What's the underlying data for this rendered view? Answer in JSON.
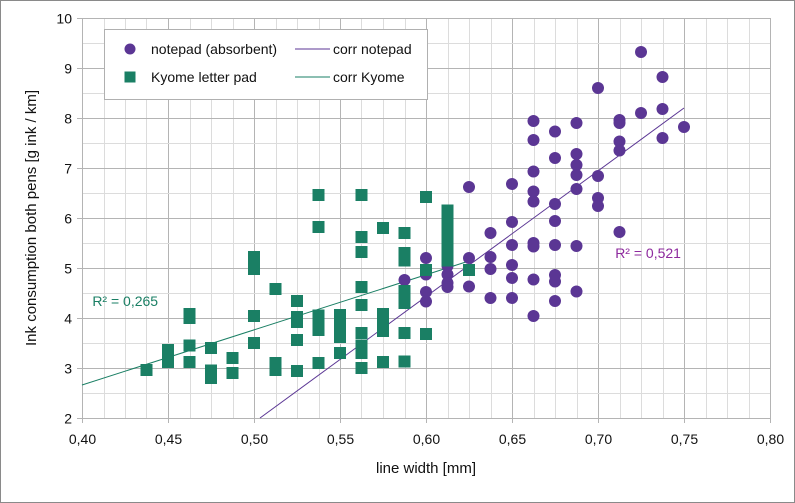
{
  "chart_data": {
    "type": "scatter",
    "title": "",
    "xlabel": "line width [mm]",
    "ylabel": "Ink consumption both pens [g ink / km]",
    "xlim": [
      0.4,
      0.8
    ],
    "ylim": [
      2,
      10
    ],
    "x_ticks": [
      "0,40",
      "0,45",
      "0,50",
      "0,55",
      "0,60",
      "0,65",
      "0,70",
      "0,75",
      "0,80"
    ],
    "x_tick_values": [
      0.4,
      0.45,
      0.5,
      0.55,
      0.6,
      0.65,
      0.7,
      0.75,
      0.8
    ],
    "y_ticks": [
      "2",
      "3",
      "4",
      "5",
      "6",
      "7",
      "8",
      "9",
      "10"
    ],
    "y_tick_values": [
      2,
      3,
      4,
      5,
      6,
      7,
      8,
      9,
      10
    ],
    "grid": true,
    "legend_position": "top-left",
    "series": [
      {
        "name": "notepad (absorbent)",
        "marker": "circle",
        "color": "#5b3694",
        "points": [
          [
            0.5875,
            4.76
          ],
          [
            0.6,
            5.2
          ],
          [
            0.6,
            4.87
          ],
          [
            0.6,
            4.52
          ],
          [
            0.6,
            4.33
          ],
          [
            0.6125,
            5.28
          ],
          [
            0.6125,
            5.04
          ],
          [
            0.6125,
            4.87
          ],
          [
            0.6125,
            4.7
          ],
          [
            0.6125,
            4.62
          ],
          [
            0.625,
            6.62
          ],
          [
            0.625,
            5.2
          ],
          [
            0.625,
            4.63
          ],
          [
            0.6375,
            5.7
          ],
          [
            0.6375,
            5.22
          ],
          [
            0.6375,
            4.98
          ],
          [
            0.6375,
            4.4
          ],
          [
            0.65,
            6.68
          ],
          [
            0.65,
            5.92
          ],
          [
            0.65,
            5.46
          ],
          [
            0.65,
            5.06
          ],
          [
            0.65,
            4.8
          ],
          [
            0.65,
            4.4
          ],
          [
            0.6625,
            7.94
          ],
          [
            0.6625,
            7.56
          ],
          [
            0.6625,
            6.93
          ],
          [
            0.6625,
            6.53
          ],
          [
            0.6625,
            6.33
          ],
          [
            0.6625,
            5.5
          ],
          [
            0.6625,
            5.43
          ],
          [
            0.6625,
            4.77
          ],
          [
            0.6625,
            4.04
          ],
          [
            0.675,
            7.73
          ],
          [
            0.675,
            7.2
          ],
          [
            0.675,
            6.28
          ],
          [
            0.675,
            5.94
          ],
          [
            0.675,
            5.46
          ],
          [
            0.675,
            4.86
          ],
          [
            0.675,
            4.73
          ],
          [
            0.675,
            4.34
          ],
          [
            0.6875,
            7.9
          ],
          [
            0.6875,
            7.28
          ],
          [
            0.6875,
            7.06
          ],
          [
            0.6875,
            6.86
          ],
          [
            0.6875,
            6.58
          ],
          [
            0.6875,
            5.44
          ],
          [
            0.6875,
            4.53
          ],
          [
            0.7,
            8.6
          ],
          [
            0.7,
            6.84
          ],
          [
            0.7,
            6.4
          ],
          [
            0.7,
            6.24
          ],
          [
            0.7125,
            7.96
          ],
          [
            0.7125,
            7.9
          ],
          [
            0.7125,
            7.53
          ],
          [
            0.7125,
            7.35
          ],
          [
            0.7125,
            5.72
          ],
          [
            0.725,
            9.32
          ],
          [
            0.725,
            8.1
          ],
          [
            0.7375,
            8.82
          ],
          [
            0.7375,
            8.18
          ],
          [
            0.7375,
            7.6
          ],
          [
            0.75,
            7.82
          ]
        ]
      },
      {
        "name": "Kyome letter pad",
        "marker": "square",
        "color": "#1a7f64",
        "points": [
          [
            0.4375,
            2.96
          ],
          [
            0.45,
            3.36
          ],
          [
            0.45,
            3.12
          ],
          [
            0.4625,
            4.08
          ],
          [
            0.4625,
            4.0
          ],
          [
            0.4625,
            3.45
          ],
          [
            0.4625,
            3.12
          ],
          [
            0.475,
            3.4
          ],
          [
            0.475,
            2.95
          ],
          [
            0.475,
            2.8
          ],
          [
            0.4875,
            3.2
          ],
          [
            0.4875,
            2.9
          ],
          [
            0.5,
            5.22
          ],
          [
            0.5,
            4.98
          ],
          [
            0.5,
            4.04
          ],
          [
            0.5,
            3.5
          ],
          [
            0.5125,
            4.58
          ],
          [
            0.5125,
            3.1
          ],
          [
            0.5125,
            2.96
          ],
          [
            0.525,
            4.34
          ],
          [
            0.525,
            4.02
          ],
          [
            0.525,
            3.92
          ],
          [
            0.525,
            3.56
          ],
          [
            0.525,
            2.94
          ],
          [
            0.5375,
            6.46
          ],
          [
            0.5375,
            5.82
          ],
          [
            0.5375,
            4.05
          ],
          [
            0.5375,
            3.9
          ],
          [
            0.5375,
            3.76
          ],
          [
            0.5375,
            3.1
          ],
          [
            0.55,
            4.06
          ],
          [
            0.55,
            3.9
          ],
          [
            0.55,
            3.75
          ],
          [
            0.55,
            3.62
          ],
          [
            0.55,
            3.3
          ],
          [
            0.5625,
            6.46
          ],
          [
            0.5625,
            5.62
          ],
          [
            0.5625,
            5.32
          ],
          [
            0.5625,
            4.62
          ],
          [
            0.5625,
            4.26
          ],
          [
            0.5625,
            3.7
          ],
          [
            0.5625,
            3.45
          ],
          [
            0.5625,
            3.3
          ],
          [
            0.5625,
            3.0
          ],
          [
            0.575,
            5.8
          ],
          [
            0.575,
            4.08
          ],
          [
            0.575,
            3.9
          ],
          [
            0.575,
            3.74
          ],
          [
            0.575,
            3.12
          ],
          [
            0.5875,
            5.7
          ],
          [
            0.5875,
            5.3
          ],
          [
            0.5875,
            5.15
          ],
          [
            0.5875,
            4.54
          ],
          [
            0.5875,
            4.44
          ],
          [
            0.5875,
            4.3
          ],
          [
            0.5875,
            3.7
          ],
          [
            0.5875,
            3.13
          ],
          [
            0.6,
            6.42
          ],
          [
            0.6,
            4.96
          ],
          [
            0.6,
            3.68
          ],
          [
            0.6125,
            6.15
          ],
          [
            0.6125,
            6.0
          ],
          [
            0.6125,
            5.85
          ],
          [
            0.6125,
            5.7
          ],
          [
            0.6125,
            5.5
          ],
          [
            0.6125,
            5.35
          ],
          [
            0.6125,
            5.15
          ],
          [
            0.625,
            4.96
          ]
        ]
      }
    ],
    "trendlines": [
      {
        "name": "corr notepad",
        "color": "#5b3694",
        "x": [
          0.5035,
          0.75
        ],
        "y": [
          2.0,
          8.2
        ],
        "r2_label": "R² = 0,521",
        "r2_color": "#8e2a9e",
        "r2_at": [
          0.71,
          5.2
        ]
      },
      {
        "name": "corr Kyome",
        "color": "#1a7f64",
        "x": [
          0.4,
          0.625
        ],
        "y": [
          2.66,
          5.14
        ],
        "r2_label": "R² = 0,265",
        "r2_color": "#1a7f64",
        "r2_at": [
          0.406,
          4.24
        ]
      }
    ],
    "legend": [
      {
        "label": "notepad (absorbent)",
        "symbol": "circle",
        "color": "#5b3694"
      },
      {
        "label": "corr notepad",
        "symbol": "line",
        "color": "#5b3694"
      },
      {
        "label": "Kyome letter pad",
        "symbol": "square",
        "color": "#1a7f64"
      },
      {
        "label": "corr Kyome",
        "symbol": "line",
        "color": "#1a7f64"
      }
    ]
  }
}
